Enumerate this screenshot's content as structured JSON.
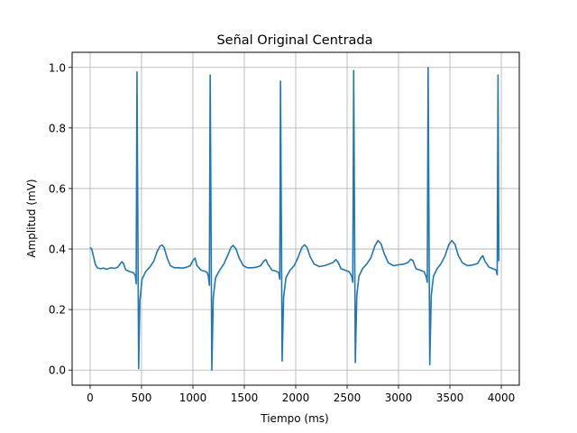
{
  "chart_data": {
    "type": "line",
    "title": "Señal Original Centrada",
    "xlabel": "Tiempo (ms)",
    "ylabel": "Amplitud (mV)",
    "xlim": [
      -175,
      4175
    ],
    "ylim": [
      -0.05,
      1.05
    ],
    "xticks": [
      0,
      500,
      1000,
      1500,
      2000,
      2500,
      3000,
      3500,
      4000
    ],
    "yticks": [
      0.0,
      0.2,
      0.4,
      0.6,
      0.8,
      1.0
    ],
    "xtick_labels": [
      "0",
      "500",
      "1000",
      "1500",
      "2000",
      "2500",
      "3000",
      "3500",
      "4000"
    ],
    "ytick_labels": [
      "0.0",
      "0.2",
      "0.4",
      "0.6",
      "0.8",
      "1.0"
    ],
    "grid": true,
    "line_color": "#1f77b4",
    "series": [
      {
        "name": "",
        "points": [
          [
            0,
            0.405
          ],
          [
            15,
            0.4
          ],
          [
            30,
            0.38
          ],
          [
            50,
            0.35
          ],
          [
            70,
            0.338
          ],
          [
            100,
            0.335
          ],
          [
            130,
            0.337
          ],
          [
            160,
            0.333
          ],
          [
            200,
            0.338
          ],
          [
            240,
            0.336
          ],
          [
            270,
            0.34
          ],
          [
            290,
            0.35
          ],
          [
            310,
            0.358
          ],
          [
            325,
            0.352
          ],
          [
            345,
            0.332
          ],
          [
            380,
            0.326
          ],
          [
            420,
            0.322
          ],
          [
            440,
            0.312
          ],
          [
            448,
            0.285
          ],
          [
            456,
            0.985
          ],
          [
            464,
            0.5
          ],
          [
            472,
            0.005
          ],
          [
            484,
            0.23
          ],
          [
            505,
            0.3
          ],
          [
            540,
            0.325
          ],
          [
            580,
            0.34
          ],
          [
            620,
            0.36
          ],
          [
            650,
            0.39
          ],
          [
            680,
            0.41
          ],
          [
            700,
            0.413
          ],
          [
            720,
            0.405
          ],
          [
            750,
            0.37
          ],
          [
            780,
            0.345
          ],
          [
            820,
            0.338
          ],
          [
            860,
            0.338
          ],
          [
            900,
            0.337
          ],
          [
            940,
            0.34
          ],
          [
            975,
            0.345
          ],
          [
            1000,
            0.362
          ],
          [
            1020,
            0.37
          ],
          [
            1040,
            0.345
          ],
          [
            1080,
            0.33
          ],
          [
            1120,
            0.326
          ],
          [
            1140,
            0.322
          ],
          [
            1150,
            0.31
          ],
          [
            1160,
            0.28
          ],
          [
            1168,
            0.975
          ],
          [
            1176,
            0.5
          ],
          [
            1184,
            0.0
          ],
          [
            1198,
            0.24
          ],
          [
            1220,
            0.305
          ],
          [
            1260,
            0.33
          ],
          [
            1300,
            0.35
          ],
          [
            1340,
            0.38
          ],
          [
            1370,
            0.405
          ],
          [
            1390,
            0.412
          ],
          [
            1420,
            0.4
          ],
          [
            1450,
            0.37
          ],
          [
            1490,
            0.345
          ],
          [
            1530,
            0.338
          ],
          [
            1580,
            0.338
          ],
          [
            1620,
            0.34
          ],
          [
            1660,
            0.345
          ],
          [
            1690,
            0.36
          ],
          [
            1710,
            0.365
          ],
          [
            1730,
            0.35
          ],
          [
            1770,
            0.33
          ],
          [
            1810,
            0.327
          ],
          [
            1835,
            0.322
          ],
          [
            1845,
            0.3
          ],
          [
            1852,
            0.955
          ],
          [
            1860,
            0.5
          ],
          [
            1868,
            0.03
          ],
          [
            1882,
            0.24
          ],
          [
            1905,
            0.305
          ],
          [
            1945,
            0.33
          ],
          [
            1985,
            0.345
          ],
          [
            2020,
            0.37
          ],
          [
            2060,
            0.405
          ],
          [
            2085,
            0.414
          ],
          [
            2110,
            0.405
          ],
          [
            2140,
            0.375
          ],
          [
            2180,
            0.35
          ],
          [
            2230,
            0.342
          ],
          [
            2280,
            0.345
          ],
          [
            2320,
            0.35
          ],
          [
            2360,
            0.355
          ],
          [
            2390,
            0.365
          ],
          [
            2410,
            0.358
          ],
          [
            2440,
            0.335
          ],
          [
            2480,
            0.33
          ],
          [
            2520,
            0.325
          ],
          [
            2545,
            0.31
          ],
          [
            2555,
            0.29
          ],
          [
            2564,
            0.99
          ],
          [
            2572,
            0.5
          ],
          [
            2580,
            0.025
          ],
          [
            2594,
            0.245
          ],
          [
            2615,
            0.31
          ],
          [
            2650,
            0.335
          ],
          [
            2690,
            0.35
          ],
          [
            2730,
            0.37
          ],
          [
            2770,
            0.41
          ],
          [
            2800,
            0.428
          ],
          [
            2830,
            0.418
          ],
          [
            2860,
            0.385
          ],
          [
            2900,
            0.355
          ],
          [
            2950,
            0.345
          ],
          [
            3000,
            0.348
          ],
          [
            3050,
            0.35
          ],
          [
            3090,
            0.355
          ],
          [
            3120,
            0.366
          ],
          [
            3140,
            0.362
          ],
          [
            3170,
            0.335
          ],
          [
            3210,
            0.33
          ],
          [
            3250,
            0.325
          ],
          [
            3270,
            0.308
          ],
          [
            3280,
            0.29
          ],
          [
            3288,
            1.0
          ],
          [
            3296,
            0.5
          ],
          [
            3304,
            0.018
          ],
          [
            3318,
            0.245
          ],
          [
            3340,
            0.31
          ],
          [
            3375,
            0.335
          ],
          [
            3410,
            0.35
          ],
          [
            3450,
            0.375
          ],
          [
            3490,
            0.415
          ],
          [
            3520,
            0.428
          ],
          [
            3550,
            0.415
          ],
          [
            3580,
            0.38
          ],
          [
            3620,
            0.355
          ],
          [
            3670,
            0.345
          ],
          [
            3720,
            0.347
          ],
          [
            3770,
            0.352
          ],
          [
            3800,
            0.37
          ],
          [
            3820,
            0.378
          ],
          [
            3840,
            0.36
          ],
          [
            3880,
            0.34
          ],
          [
            3920,
            0.335
          ],
          [
            3950,
            0.33
          ],
          [
            3960,
            0.315
          ],
          [
            3968,
            0.975
          ],
          [
            3976,
            0.36
          ]
        ]
      }
    ]
  }
}
